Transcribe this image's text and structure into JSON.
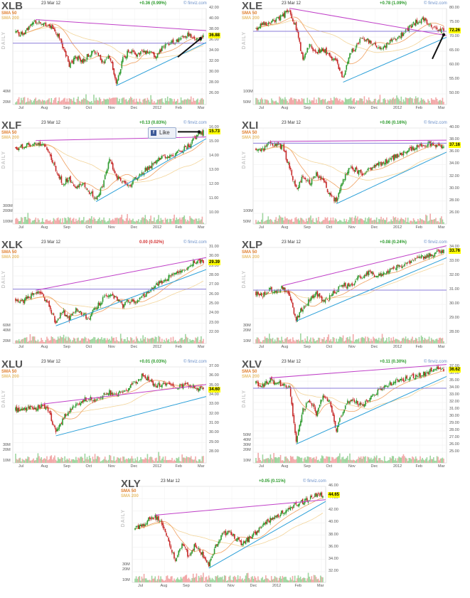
{
  "common": {
    "date": "23 Mar 12",
    "sma50": "SMA 50",
    "sma200": "SMA 200",
    "daily": "DAILY",
    "source": "© finviz.com",
    "months": [
      "Jul",
      "Aug",
      "Sep",
      "Oct",
      "Nov",
      "Dec",
      "2012",
      "Feb",
      "Mar"
    ]
  },
  "like_button": {
    "label": "Like"
  },
  "chart_data": [
    {
      "type": "line",
      "ticker": "XLB",
      "change": "+0.36 (0.99%)",
      "change_color": "#2a9a2a",
      "last": "36.88",
      "ylim": [
        26,
        42
      ],
      "yticks": [
        "42.00",
        "40.00",
        "38.00",
        "36.00",
        "34.00",
        "32.00",
        "30.00",
        "28.00",
        "26.00"
      ],
      "vol_ticks": [
        "40M",
        "20M"
      ],
      "closes": [
        37.5,
        37.2,
        38.5,
        39.6,
        39.3,
        38.9,
        37.8,
        35.0,
        31.5,
        33.0,
        32.0,
        33.5,
        34.0,
        31.8,
        33.0,
        28.0,
        32.5,
        34.3,
        33.2,
        34.0,
        33.6,
        33.0,
        34.8,
        35.4,
        35.9,
        36.8,
        37.2,
        36.0,
        36.9
      ],
      "hline": 35.5,
      "markers": [
        "support",
        "trend",
        "arrow"
      ]
    },
    {
      "type": "line",
      "ticker": "XLE",
      "change": "+0.78 (1.09%)",
      "change_color": "#2a9a2a",
      "last": "72.26",
      "ylim": [
        50,
        80
      ],
      "yticks": [
        "80.00",
        "75.00",
        "70.00",
        "65.00",
        "60.00",
        "55.00",
        "50.00"
      ],
      "vol_ticks": [
        "100M",
        "50M"
      ],
      "closes": [
        73,
        74.5,
        75,
        76,
        77.5,
        79.5,
        73,
        62,
        67,
        64,
        66,
        63,
        61,
        55,
        64,
        67,
        70,
        68,
        67,
        66,
        69,
        70,
        71,
        73.5,
        75.5,
        76,
        74.5,
        72,
        72.3
      ],
      "hline": 72,
      "markers": [
        "resistance",
        "trend",
        "arrow"
      ]
    },
    {
      "type": "line",
      "ticker": "XLF",
      "change": "+0.13 (0.83%)",
      "change_color": "#2a9a2a",
      "last": "15.73",
      "ylim": [
        10,
        16
      ],
      "yticks": [
        "16.00",
        "15.00",
        "14.00",
        "13.00",
        "12.00",
        "11.00",
        "10.00"
      ],
      "vol_ticks": [
        "300M",
        "200M",
        "100M"
      ],
      "closes": [
        14.6,
        14.7,
        14.8,
        15.0,
        14.9,
        14.3,
        13.0,
        12.1,
        12.4,
        11.8,
        12.2,
        11.5,
        11.0,
        12.0,
        13.8,
        12.6,
        12.3,
        12.0,
        12.5,
        12.9,
        13.3,
        13.6,
        14.0,
        14.1,
        14.2,
        14.5,
        14.8,
        15.5,
        15.73
      ],
      "hline": null,
      "markers": [
        "resistance",
        "trend",
        "arrow"
      ]
    },
    {
      "type": "line",
      "ticker": "XLI",
      "change": "+0.06 (0.16%)",
      "change_color": "#2a9a2a",
      "last": "37.16",
      "ylim": [
        26,
        40
      ],
      "yticks": [
        "40.00",
        "38.00",
        "36.00",
        "34.00",
        "32.00",
        "30.00",
        "28.00",
        "26.00"
      ],
      "vol_ticks": [
        "100M",
        "50M"
      ],
      "closes": [
        36.5,
        36.3,
        37.5,
        37.3,
        36.8,
        33.5,
        30.0,
        32.0,
        31.0,
        32.5,
        31.5,
        29.0,
        28.0,
        31.5,
        33.5,
        33.0,
        32.5,
        33.4,
        34.0,
        34.3,
        34.9,
        35.5,
        36.0,
        36.5,
        37.0,
        37.3,
        37.5,
        37.0,
        37.16
      ],
      "hline": 37.5,
      "markers": [
        "resistance",
        "trend"
      ]
    },
    {
      "type": "line",
      "ticker": "XLK",
      "change": "0.00 (0.02%)",
      "change_color": "#d33333",
      "last": "29.39",
      "ylim": [
        22,
        31
      ],
      "yticks": [
        "31.00",
        "30.00",
        "29.00",
        "28.00",
        "27.00",
        "26.00",
        "25.00",
        "24.00",
        "23.00",
        "22.00"
      ],
      "vol_ticks": [
        "60M",
        "40M",
        "20M"
      ],
      "closes": [
        25.5,
        25.3,
        25.8,
        26.3,
        25.9,
        24.8,
        23.0,
        24.3,
        23.5,
        24.5,
        24.0,
        23.5,
        24.8,
        25.5,
        26.0,
        25.6,
        24.8,
        25.5,
        25.2,
        25.8,
        26.5,
        27.0,
        27.5,
        27.9,
        28.3,
        28.7,
        29.2,
        29.6,
        29.39
      ],
      "hline": 26.6,
      "markers": [
        "resistance",
        "trend"
      ]
    },
    {
      "type": "line",
      "ticker": "XLP",
      "change": "+0.08 (0.24%)",
      "change_color": "#2a9a2a",
      "last": "33.76",
      "ylim": [
        28,
        34
      ],
      "yticks": [
        "34.00",
        "33.00",
        "32.00",
        "31.00",
        "30.00",
        "29.00",
        "28.00"
      ],
      "vol_ticks": [
        "30M",
        "20M",
        "10M"
      ],
      "closes": [
        30.8,
        30.6,
        31.0,
        30.9,
        31.2,
        30.5,
        29.0,
        29.8,
        30.3,
        30.8,
        30.2,
        30.5,
        31.0,
        31.4,
        31.2,
        31.8,
        32.0,
        32.3,
        31.9,
        32.2,
        32.5,
        32.6,
        32.8,
        33.0,
        33.2,
        33.3,
        33.5,
        33.7,
        33.76
      ],
      "hline": 31.0,
      "markers": [
        "resistance",
        "trend"
      ]
    },
    {
      "type": "line",
      "ticker": "XLU",
      "change": "+0.01 (0.03%)",
      "change_color": "#2a9a2a",
      "last": "34.60",
      "ylim": [
        28,
        37
      ],
      "yticks": [
        "37.00",
        "36.00",
        "35.00",
        "34.00",
        "33.00",
        "32.00",
        "31.00",
        "30.00",
        "29.00",
        "28.00"
      ],
      "vol_ticks": [
        "30M",
        "20M",
        "10M"
      ],
      "closes": [
        32.5,
        32.4,
        32.8,
        32.6,
        32.9,
        32.3,
        30.0,
        31.5,
        32.5,
        33.0,
        33.4,
        33.8,
        33.5,
        33.9,
        34.3,
        34.0,
        34.5,
        34.8,
        35.5,
        36.2,
        35.5,
        35.0,
        35.2,
        35.0,
        34.9,
        35.0,
        35.1,
        34.8,
        34.6
      ],
      "hline": null,
      "markers": [
        "resistance",
        "trend"
      ]
    },
    {
      "type": "line",
      "ticker": "XLV",
      "change": "+0.11 (0.30%)",
      "change_color": "#2a9a2a",
      "last": "36.62",
      "ylim": [
        25,
        37
      ],
      "yticks": [
        "37.00",
        "36.00",
        "35.00",
        "34.00",
        "33.00",
        "32.00",
        "31.00",
        "30.00",
        "29.00",
        "28.00",
        "27.00",
        "26.00",
        "25.00"
      ],
      "vol_ticks": [
        "50M",
        "40M",
        "30M",
        "20M",
        "10M"
      ],
      "closes": [
        34.8,
        34.3,
        35.2,
        34.8,
        34.5,
        34.0,
        26.5,
        31.0,
        32.2,
        30.5,
        33.0,
        32.0,
        28.0,
        31.0,
        32.5,
        32.0,
        31.5,
        32.8,
        33.5,
        34.0,
        34.6,
        35.0,
        35.3,
        35.6,
        35.8,
        36.0,
        36.4,
        36.9,
        36.62
      ],
      "hline": 34.0,
      "markers": [
        "resistance",
        "trend"
      ]
    },
    {
      "type": "line",
      "ticker": "XLY",
      "change": "+0.05 (0.11%)",
      "change_color": "#2a9a2a",
      "last": "44.65",
      "ylim": [
        32,
        46
      ],
      "yticks": [
        "46.00",
        "44.00",
        "42.00",
        "40.00",
        "38.00",
        "36.00",
        "34.00",
        "32.00"
      ],
      "vol_ticks": [
        "30M",
        "20M",
        "10M"
      ],
      "closes": [
        39.0,
        39.5,
        40.5,
        41.0,
        40.0,
        37.0,
        34.0,
        36.5,
        34.5,
        36.5,
        35.0,
        33.0,
        36.0,
        38.0,
        38.5,
        37.5,
        36.5,
        37.5,
        38.5,
        39.5,
        40.5,
        41.0,
        41.8,
        42.5,
        43.0,
        43.5,
        44.0,
        44.8,
        44.65
      ],
      "hline": null,
      "markers": [
        "resistance",
        "trend"
      ]
    }
  ]
}
